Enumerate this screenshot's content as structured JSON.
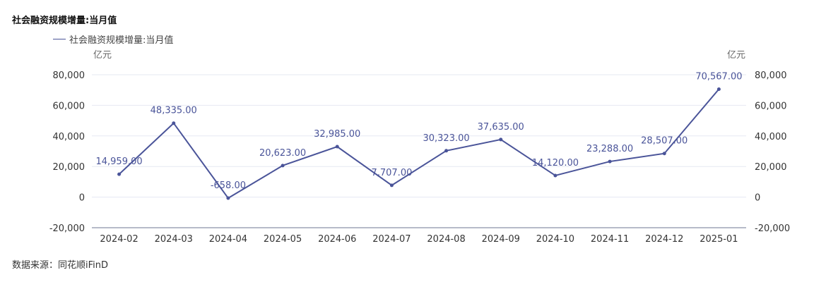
{
  "chart_data": {
    "type": "line",
    "title": "社会融资规模增量:当月值",
    "legend": {
      "position": "top-left",
      "entries": [
        "社会融资规模增量:当月值"
      ]
    },
    "left_axis_unit": "亿元",
    "right_axis_unit": "亿元",
    "ylim": [
      -20000,
      80000
    ],
    "yticks": [
      -20000,
      0,
      20000,
      40000,
      60000,
      80000
    ],
    "ytick_labels": [
      "-20,000",
      "0",
      "20,000",
      "40,000",
      "60,000",
      "80,000"
    ],
    "grid": true,
    "categories": [
      "2024-02",
      "2024-03",
      "2024-04",
      "2024-05",
      "2024-06",
      "2024-07",
      "2024-08",
      "2024-09",
      "2024-10",
      "2024-11",
      "2024-12",
      "2025-01"
    ],
    "series": [
      {
        "name": "社会融资规模增量:当月值",
        "color": "#4a5499",
        "values": [
          14959,
          48335,
          -658,
          20623,
          32985,
          7707,
          30323,
          37635,
          14120,
          23288,
          28507,
          70567
        ],
        "labels": [
          "14,959.00",
          "48,335.00",
          "-658.00",
          "20,623.00",
          "32,985.00",
          "7,707.00",
          "30,323.00",
          "37,635.00",
          "14,120.00",
          "23,288.00",
          "28,507.00",
          "70,567.00"
        ]
      }
    ]
  },
  "source": "数据来源：同花顺iFinD"
}
